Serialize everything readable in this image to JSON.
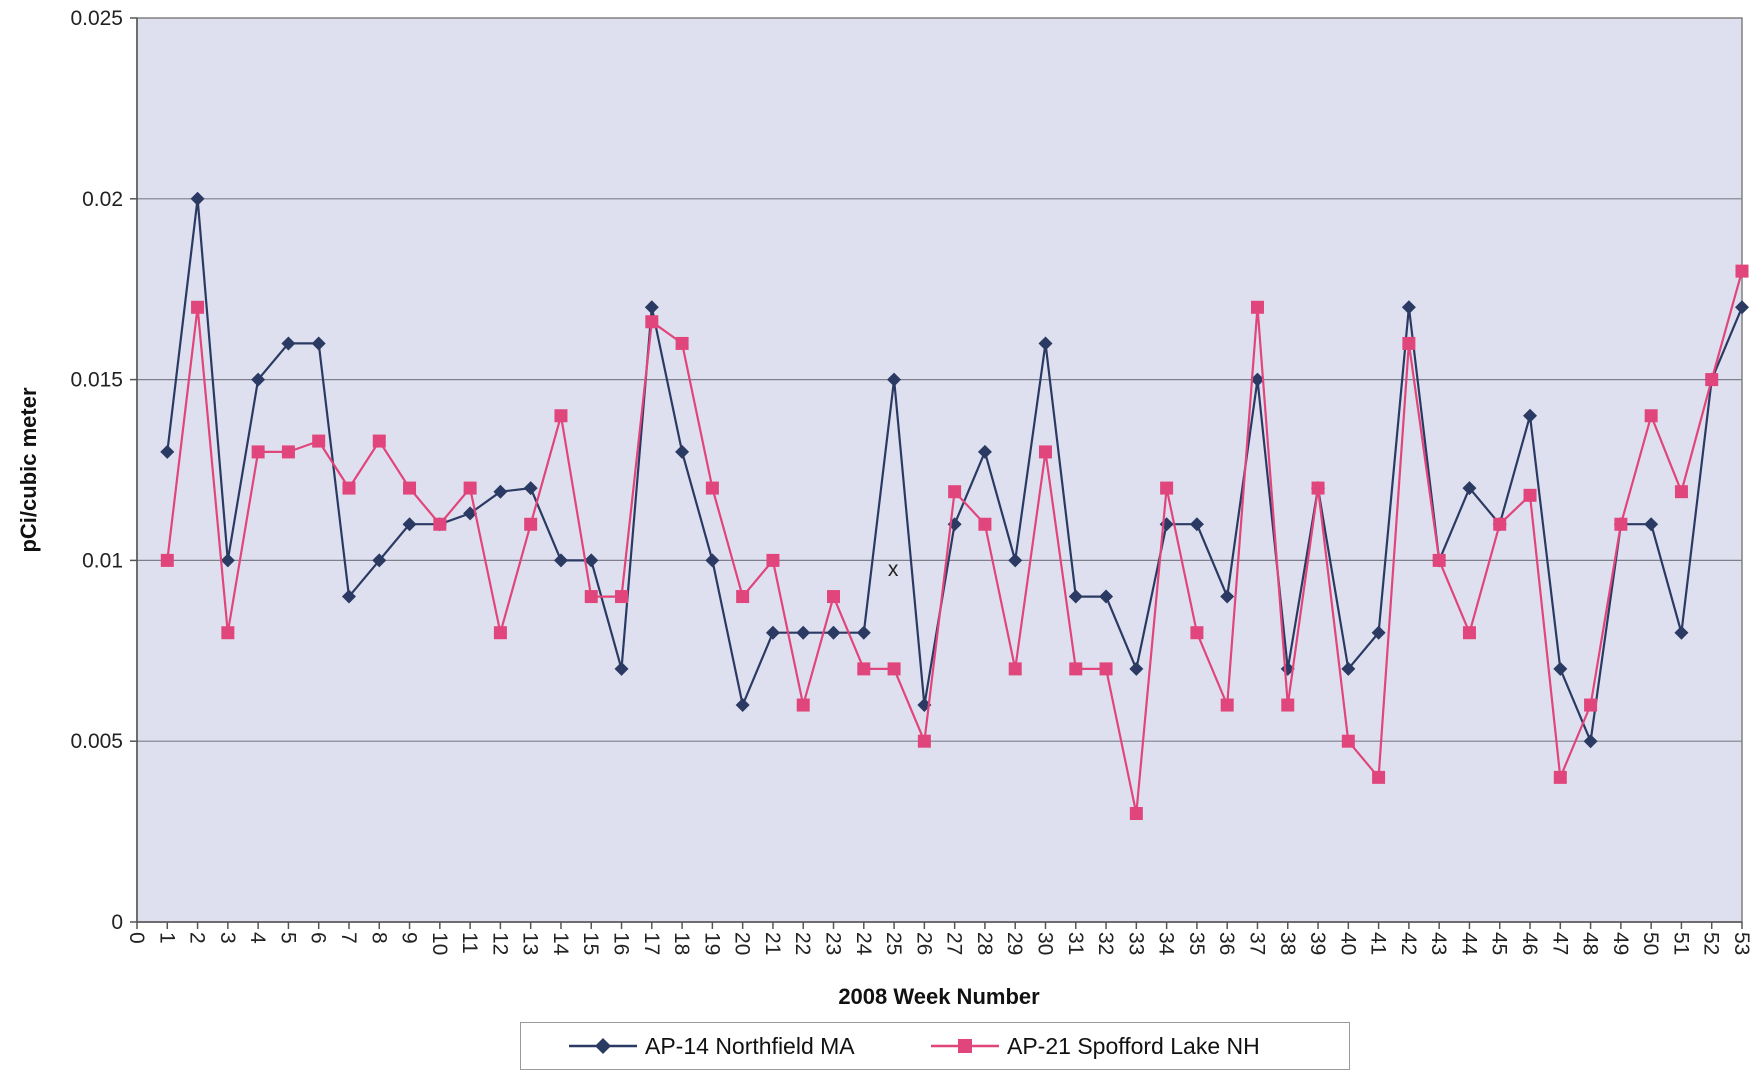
{
  "chart_data": {
    "type": "line",
    "title": "",
    "xlabel": "2008 Week Number",
    "ylabel": "pCi/cubic meter",
    "xlim": [
      0,
      53
    ],
    "ylim": [
      0,
      0.025
    ],
    "x_ticks": [
      "0",
      "1",
      "2",
      "3",
      "4",
      "5",
      "6",
      "7",
      "8",
      "9",
      "10",
      "11",
      "12",
      "13",
      "14",
      "15",
      "16",
      "17",
      "18",
      "19",
      "20",
      "21",
      "22",
      "23",
      "24",
      "25",
      "26",
      "27",
      "28",
      "29",
      "30",
      "31",
      "32",
      "33",
      "34",
      "35",
      "36",
      "37",
      "38",
      "39",
      "40",
      "41",
      "42",
      "43",
      "44",
      "45",
      "46",
      "47",
      "48",
      "49",
      "50",
      "51",
      "52",
      "53"
    ],
    "y_ticks": [
      "0",
      "0.005",
      "0.01",
      "0.015",
      "0.02",
      "0.025"
    ],
    "grid": true,
    "legend_position": "bottom",
    "background_color": "#dfe0ef",
    "annotations": [
      {
        "text": "x",
        "x": 25,
        "y": 0.0097
      }
    ],
    "series": [
      {
        "name": "AP-14 Northfield MA",
        "color": "#2b3a63",
        "marker": "diamond",
        "x": [
          1,
          2,
          3,
          4,
          5,
          6,
          7,
          8,
          9,
          10,
          11,
          12,
          13,
          14,
          15,
          16,
          17,
          18,
          19,
          20,
          21,
          22,
          23,
          24,
          25,
          26,
          27,
          28,
          29,
          30,
          31,
          32,
          33,
          34,
          35,
          36,
          37,
          38,
          39,
          40,
          41,
          42,
          43,
          44,
          45,
          46,
          47,
          48,
          49,
          50,
          51,
          52,
          53
        ],
        "values": [
          0.013,
          0.02,
          0.01,
          0.015,
          0.016,
          0.016,
          0.009,
          0.01,
          0.011,
          0.011,
          0.0113,
          0.0119,
          0.012,
          0.01,
          0.01,
          0.007,
          0.017,
          0.013,
          0.01,
          0.006,
          0.008,
          0.008,
          0.008,
          0.008,
          0.015,
          0.006,
          0.011,
          0.013,
          0.01,
          0.016,
          0.009,
          0.009,
          0.007,
          0.011,
          0.011,
          0.009,
          0.015,
          0.007,
          0.012,
          0.007,
          0.008,
          0.017,
          0.01,
          0.012,
          0.011,
          0.014,
          0.007,
          0.005,
          0.011,
          0.011,
          0.008,
          0.015,
          0.017
        ]
      },
      {
        "name": "AP-21 Spofford Lake NH",
        "color": "#e0457b",
        "marker": "square",
        "x": [
          1,
          2,
          3,
          4,
          5,
          6,
          7,
          8,
          9,
          10,
          11,
          12,
          13,
          14,
          15,
          16,
          17,
          18,
          19,
          20,
          21,
          22,
          23,
          24,
          25,
          26,
          27,
          28,
          29,
          30,
          31,
          32,
          33,
          34,
          35,
          36,
          37,
          38,
          39,
          40,
          41,
          42,
          43,
          44,
          45,
          46,
          47,
          48,
          49,
          50,
          51,
          52,
          53
        ],
        "values": [
          0.01,
          0.017,
          0.008,
          0.013,
          0.013,
          0.0133,
          0.012,
          0.0133,
          0.012,
          0.011,
          0.012,
          0.008,
          0.011,
          0.014,
          0.009,
          0.009,
          0.0166,
          0.016,
          0.012,
          0.009,
          0.01,
          0.006,
          0.009,
          0.007,
          0.007,
          0.005,
          0.0119,
          0.011,
          0.007,
          0.013,
          0.007,
          0.007,
          0.003,
          0.012,
          0.008,
          0.006,
          0.017,
          0.006,
          0.012,
          0.005,
          0.004,
          0.016,
          0.01,
          0.008,
          0.011,
          0.0118,
          0.004,
          0.006,
          0.011,
          0.014,
          0.0119,
          0.015,
          0.018
        ]
      }
    ]
  }
}
